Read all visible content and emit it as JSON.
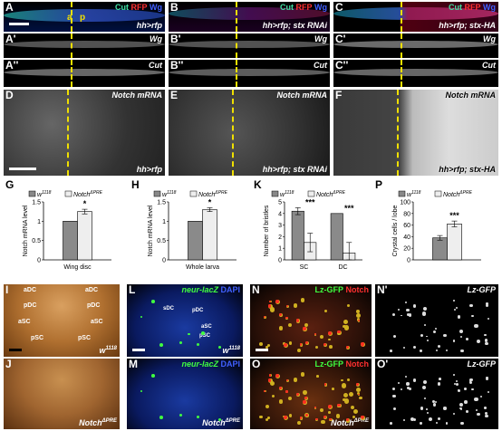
{
  "panel_letters": {
    "A": "A",
    "B": "B",
    "C": "C",
    "A1": "A'",
    "B1": "B'",
    "C1": "C'",
    "A2": "A''",
    "B2": "B''",
    "C2": "C''",
    "D": "D",
    "E": "E",
    "F": "F",
    "G": "G",
    "H": "H",
    "K": "K",
    "P": "P",
    "I": "I",
    "J": "J",
    "L": "L",
    "M": "M",
    "N": "N",
    "N1": "N'",
    "O": "O",
    "O1": "O'"
  },
  "channels": {
    "cut": "Cut",
    "rfp": "RFP",
    "wg": "Wg",
    "notch_mrna": "Notch mRNA",
    "lz_gfp": "Lz-GFP",
    "notch": "Notch",
    "neur_lacz": "neur-lacZ",
    "dapi": "DAPI"
  },
  "genotypes": {
    "control": "hh>rfp",
    "rnai": "hh>rfp; stx RNAi",
    "ha": "hh>rfp; stx-HA",
    "w_base": "w",
    "w_sup": "1118",
    "notch_base": "Notch",
    "notch_sup": "ΔPRE"
  },
  "regions": {
    "a": "a",
    "p": "p"
  },
  "bristles": {
    "adc": "aDC",
    "pdc": "pDC",
    "asc": "aSC",
    "psc": "pSC",
    "sdc": "sDC"
  },
  "colors": {
    "dash": "#f0e000",
    "cut": "#40e0a0",
    "rfp": "#ff3030",
    "wg": "#4060ff",
    "gfp": "#40ff40"
  },
  "chart_data": [
    {
      "id": "G",
      "type": "bar",
      "ylabel": "Notch mRNA level",
      "categories": [
        "Wing disc"
      ],
      "series": [
        {
          "name": "w1118",
          "values": [
            1.0
          ],
          "err": [
            0
          ]
        },
        {
          "name": "NotchΔPRE",
          "values": [
            1.25
          ],
          "err": [
            0.06
          ]
        }
      ],
      "ylim": [
        0,
        1.5
      ],
      "yticks": [
        0,
        0.5,
        1,
        1.5
      ],
      "sig": [
        "*"
      ]
    },
    {
      "id": "H",
      "type": "bar",
      "ylabel": "Notch mRNA level",
      "categories": [
        "Whole larva"
      ],
      "series": [
        {
          "name": "w1118",
          "values": [
            1.0
          ],
          "err": [
            0
          ]
        },
        {
          "name": "NotchΔPRE",
          "values": [
            1.3
          ],
          "err": [
            0.05
          ]
        }
      ],
      "ylim": [
        0,
        1.5
      ],
      "yticks": [
        0,
        0.5,
        1,
        1.5
      ],
      "sig": [
        "*"
      ]
    },
    {
      "id": "K",
      "type": "bar",
      "ylabel": "Number of bristles",
      "categories": [
        "SC",
        "DC"
      ],
      "series": [
        {
          "name": "w1118",
          "values": [
            4.2,
            4.0
          ],
          "err": [
            0.3,
            0
          ]
        },
        {
          "name": "NotchΔPRE",
          "values": [
            1.5,
            0.6
          ],
          "err": [
            0.8,
            0.9
          ]
        }
      ],
      "ylim": [
        0,
        5
      ],
      "yticks": [
        0,
        1,
        2,
        3,
        4,
        5
      ],
      "sig": [
        "***",
        "***"
      ]
    },
    {
      "id": "P",
      "type": "bar",
      "ylabel": "Crystal cells / lobe",
      "categories": [
        ""
      ],
      "series": [
        {
          "name": "w1118",
          "values": [
            38
          ],
          "err": [
            4
          ]
        },
        {
          "name": "NotchΔPRE",
          "values": [
            62
          ],
          "err": [
            5
          ]
        }
      ],
      "ylim": [
        0,
        100
      ],
      "yticks": [
        0,
        20,
        40,
        60,
        80,
        100
      ],
      "sig": [
        "***"
      ]
    }
  ]
}
